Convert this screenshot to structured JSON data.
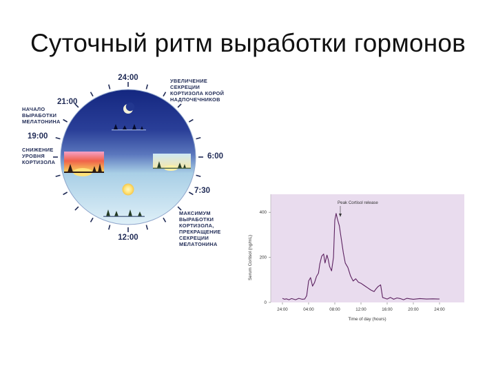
{
  "slide": {
    "title": "Суточный ритм выработки гормонов"
  },
  "clock_diagram": {
    "times": {
      "t2400": "24:00",
      "t2100": "21:00",
      "t1900": "19:00",
      "t0600": "6:00",
      "t0730": "7:30",
      "t1200": "12:00"
    },
    "labels": {
      "cortisol_increase": [
        "УВЕЛИЧЕНИЕ",
        "СЕКРЕЦИИ",
        "КОРТИЗОЛА КОРОЙ",
        "НАДПОЧЕЧНИКОВ"
      ],
      "melatonin_start": [
        "НАЧАЛО",
        "ВЫРАБОТКИ",
        "МЕЛАТОНИНА"
      ],
      "cortisol_decrease": [
        "СНИЖЕНИЕ",
        "УРОВНЯ",
        "КОРТИЗОЛА"
      ],
      "max_cortisol": [
        "МАКСИМУМ",
        "ВЫРАБОТКИ",
        "КОРТИЗОЛА,",
        "ПРЕКРАЩЕНИЕ",
        "СЕКРЕЦИИ",
        "МЕЛАТОНИНА"
      ]
    },
    "colors": {
      "night_sky": "#1c2f8a",
      "day_sky": "#cfe7f4",
      "sunset": "#f0624a",
      "sun": "#ffe98a",
      "text": "#1f2a55"
    },
    "icons": [
      "moon-icon",
      "sun-icon",
      "tree-icon",
      "sunset-scene",
      "sunrise-scene"
    ]
  },
  "chart_data": {
    "type": "line",
    "annotation": "Peak Cortisol release",
    "ylabel": "Serum Cortisol (ng/mL)",
    "xlabel": "Time of day (hours)",
    "x_ticks": [
      "24:00",
      "04:00",
      "08:00",
      "12:00",
      "16:00",
      "20:00",
      "24:00"
    ],
    "y_ticks": [
      "0",
      "200",
      "400"
    ],
    "xlim": [
      0,
      24
    ],
    "ylim": [
      0,
      480
    ],
    "grid": false,
    "background": "#e9dcee",
    "line_color": "#5a1f5e",
    "series": [
      {
        "x": [
          0,
          0.3,
          0.6,
          1,
          1.4,
          2,
          2.5,
          3,
          3.4,
          3.7,
          4,
          4.3,
          4.6,
          4.9,
          5.2,
          5.5,
          5.7,
          6,
          6.3,
          6.5,
          6.8,
          7,
          7.2,
          7.5,
          7.8,
          8,
          8.2,
          8.4,
          8.7,
          9,
          9.3,
          9.6,
          10,
          10.4,
          10.8,
          11.2,
          11.6,
          12,
          12.5,
          13,
          13.5,
          14,
          14.3,
          14.6,
          15,
          15.3,
          15.7,
          16,
          16.5,
          17,
          17.5,
          18,
          18.5,
          19,
          19.5,
          20,
          21,
          22,
          23,
          24
        ],
        "y": [
          18,
          14,
          16,
          12,
          17,
          12,
          18,
          14,
          15,
          30,
          95,
          110,
          72,
          88,
          115,
          130,
          170,
          205,
          215,
          175,
          210,
          190,
          160,
          140,
          200,
          365,
          395,
          370,
          340,
          280,
          220,
          175,
          155,
          118,
          95,
          105,
          90,
          85,
          75,
          65,
          55,
          48,
          60,
          70,
          78,
          22,
          18,
          15,
          22,
          14,
          20,
          17,
          12,
          18,
          16,
          14,
          17,
          15,
          16,
          15
        ]
      }
    ]
  }
}
